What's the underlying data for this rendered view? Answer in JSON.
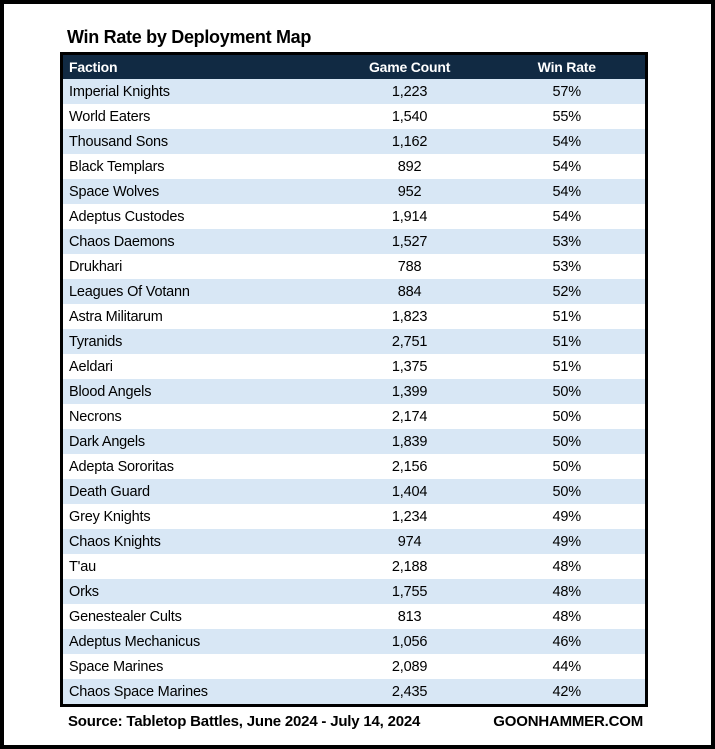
{
  "title": "Win Rate by Deployment Map",
  "colors": {
    "frame": "#000000",
    "header_bg": "#112a43",
    "header_text": "#ffffff",
    "row_alt_bg": "#d8e7f5",
    "row_bg": "#ffffff"
  },
  "chart_data": {
    "type": "table",
    "title": "Win Rate by Deployment Map",
    "columns": [
      "Faction",
      "Game Count",
      "Win Rate"
    ],
    "rows": [
      {
        "faction": "Imperial Knights",
        "game_count": "1,223",
        "win_rate": "57%"
      },
      {
        "faction": "World Eaters",
        "game_count": "1,540",
        "win_rate": "55%"
      },
      {
        "faction": "Thousand Sons",
        "game_count": "1,162",
        "win_rate": "54%"
      },
      {
        "faction": "Black Templars",
        "game_count": "892",
        "win_rate": "54%"
      },
      {
        "faction": "Space Wolves",
        "game_count": "952",
        "win_rate": "54%"
      },
      {
        "faction": "Adeptus Custodes",
        "game_count": "1,914",
        "win_rate": "54%"
      },
      {
        "faction": "Chaos Daemons",
        "game_count": "1,527",
        "win_rate": "53%"
      },
      {
        "faction": "Drukhari",
        "game_count": "788",
        "win_rate": "53%"
      },
      {
        "faction": "Leagues Of Votann",
        "game_count": "884",
        "win_rate": "52%"
      },
      {
        "faction": "Astra Militarum",
        "game_count": "1,823",
        "win_rate": "51%"
      },
      {
        "faction": "Tyranids",
        "game_count": "2,751",
        "win_rate": "51%"
      },
      {
        "faction": "Aeldari",
        "game_count": "1,375",
        "win_rate": "51%"
      },
      {
        "faction": "Blood Angels",
        "game_count": "1,399",
        "win_rate": "50%"
      },
      {
        "faction": "Necrons",
        "game_count": "2,174",
        "win_rate": "50%"
      },
      {
        "faction": "Dark Angels",
        "game_count": "1,839",
        "win_rate": "50%"
      },
      {
        "faction": "Adepta Sororitas",
        "game_count": "2,156",
        "win_rate": "50%"
      },
      {
        "faction": "Death Guard",
        "game_count": "1,404",
        "win_rate": "50%"
      },
      {
        "faction": "Grey Knights",
        "game_count": "1,234",
        "win_rate": "49%"
      },
      {
        "faction": "Chaos Knights",
        "game_count": "974",
        "win_rate": "49%"
      },
      {
        "faction": "T'au",
        "game_count": "2,188",
        "win_rate": "48%"
      },
      {
        "faction": "Orks",
        "game_count": "1,755",
        "win_rate": "48%"
      },
      {
        "faction": "Genestealer Cults",
        "game_count": "813",
        "win_rate": "48%"
      },
      {
        "faction": "Adeptus Mechanicus",
        "game_count": "1,056",
        "win_rate": "46%"
      },
      {
        "faction": "Space Marines",
        "game_count": "2,089",
        "win_rate": "44%"
      },
      {
        "faction": "Chaos Space Marines",
        "game_count": "2,435",
        "win_rate": "42%"
      }
    ]
  },
  "footer": {
    "source": "Source: Tabletop Battles, June 2024 - July 14, 2024",
    "site": "GOONHAMMER.COM"
  }
}
